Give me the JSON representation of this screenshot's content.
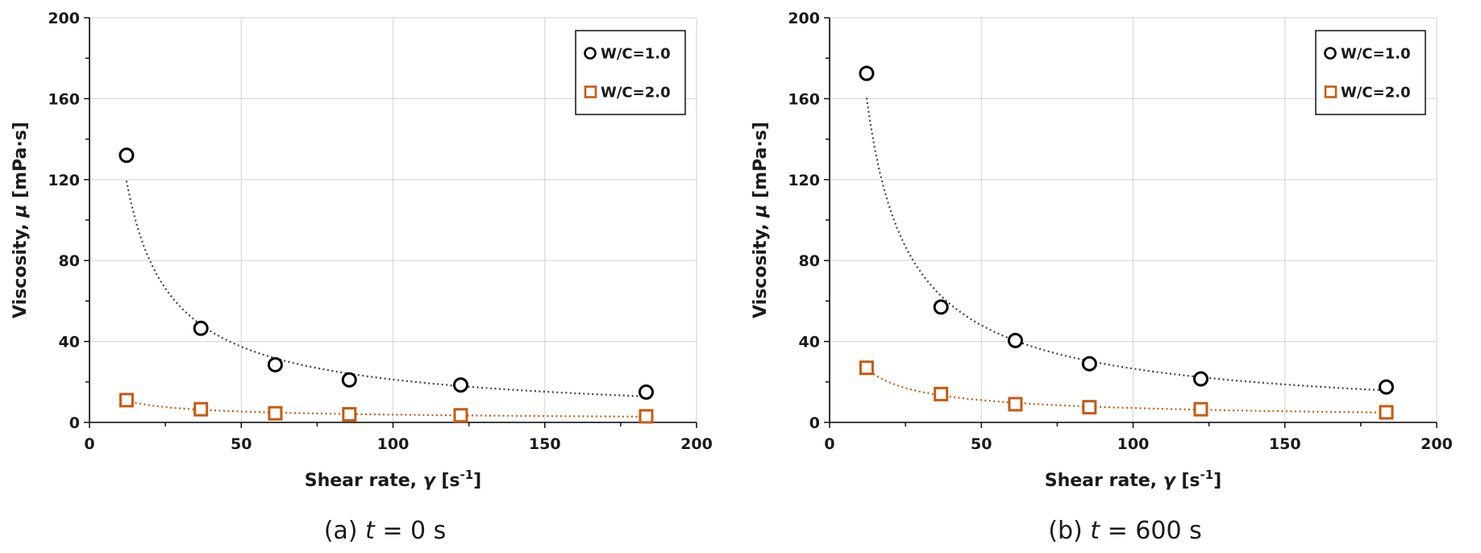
{
  "chart_data": [
    {
      "type": "scatter",
      "caption": {
        "label": "(a)",
        "var": "t",
        "value": "= 0 s"
      },
      "xlabel": {
        "text": "Shear rate, ",
        "symbol": "γ",
        "unit": " [s",
        "unit_sup": "-1",
        "unit_end": "]"
      },
      "ylabel": {
        "text": "Viscosity, ",
        "symbol": "μ",
        "unit": " [mPa·s]"
      },
      "xlim": [
        0,
        200
      ],
      "ylim": [
        0,
        200
      ],
      "xticks": [
        0,
        50,
        100,
        150,
        200
      ],
      "yticks": [
        0,
        40,
        80,
        120,
        160,
        200
      ],
      "grid": true,
      "legend_position": "top-right",
      "series": [
        {
          "name": "W/C=1.0",
          "marker": "circle",
          "color": "#000000",
          "trend_color": "#404040",
          "x": [
            12.2,
            36.7,
            61.2,
            85.6,
            122.3,
            183.4
          ],
          "y": [
            132,
            46.5,
            28.5,
            21,
            18.5,
            15
          ]
        },
        {
          "name": "W/C=2.0",
          "marker": "square",
          "color": "#C55A11",
          "trend_color": "#C55A11",
          "x": [
            12.2,
            36.7,
            61.2,
            85.6,
            122.3,
            183.4
          ],
          "y": [
            11,
            6.5,
            4.5,
            4,
            3.5,
            3
          ]
        }
      ]
    },
    {
      "type": "scatter",
      "caption": {
        "label": "(b)",
        "var": "t",
        "value": "= 600 s"
      },
      "xlabel": {
        "text": "Shear rate, ",
        "symbol": "γ",
        "unit": " [s",
        "unit_sup": "-1",
        "unit_end": "]"
      },
      "ylabel": {
        "text": "Viscosity, ",
        "symbol": "μ",
        "unit": " [mPa·s]"
      },
      "xlim": [
        0,
        200
      ],
      "ylim": [
        0,
        200
      ],
      "xticks": [
        0,
        50,
        100,
        150,
        200
      ],
      "yticks": [
        0,
        40,
        80,
        120,
        160,
        200
      ],
      "grid": true,
      "legend_position": "top-right",
      "series": [
        {
          "name": "W/C=1.0",
          "marker": "circle",
          "color": "#000000",
          "trend_color": "#404040",
          "x": [
            12.2,
            36.7,
            61.2,
            85.6,
            122.3,
            183.4
          ],
          "y": [
            172.5,
            57,
            40.5,
            29,
            21.5,
            17.5
          ]
        },
        {
          "name": "W/C=2.0",
          "marker": "square",
          "color": "#C55A11",
          "trend_color": "#C55A11",
          "x": [
            12.2,
            36.7,
            61.2,
            85.6,
            122.3,
            183.4
          ],
          "y": [
            27,
            14,
            9,
            7.5,
            6.5,
            5
          ]
        }
      ]
    }
  ]
}
